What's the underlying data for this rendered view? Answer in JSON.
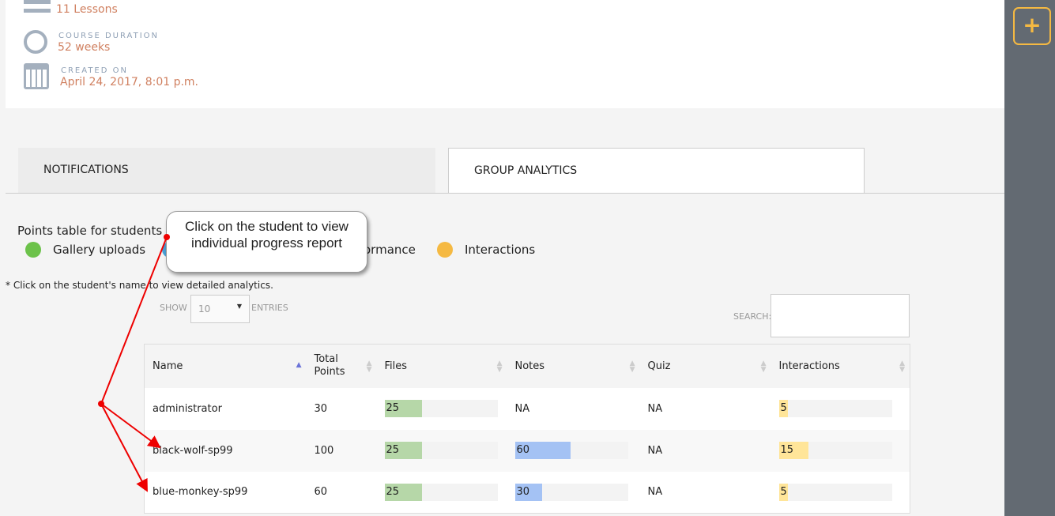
{
  "course_info": {
    "lessons_value": "11 Lessons",
    "duration_label": "COURSE DURATION",
    "duration_value": "52 weeks",
    "created_label": "CREATED ON",
    "created_value": "April 24, 2017, 8:01 p.m."
  },
  "sidebar": {
    "add_button": "+",
    "accent": "#f5b942"
  },
  "tabs": [
    {
      "label": "NOTIFICATIONS"
    },
    {
      "label": "GROUP ANALYTICS",
      "active": true
    }
  ],
  "analytics": {
    "title": "Points table for students",
    "legend": [
      {
        "label": "Gallery uploads",
        "color": "#6cc24a"
      },
      {
        "label": "ormance",
        "color": "#4a9fd5"
      },
      {
        "label": "Interactions",
        "color": "#f5b942"
      }
    ],
    "note": "* Click on the student's name to view detailed analytics.",
    "show_label": "SHOW",
    "entries_value": "10",
    "entries_label": "ENTRIES",
    "search_label": "SEARCH:",
    "columns": [
      "Name",
      "Total Points",
      "Files",
      "Notes",
      "Quiz",
      "Interactions"
    ],
    "rows": [
      {
        "name": "administrator",
        "total": "30",
        "files": {
          "value": "25",
          "pct": 33
        },
        "notes": {
          "value": "NA"
        },
        "quiz": "NA",
        "interactions": {
          "value": "5",
          "pct": 8
        }
      },
      {
        "name": "black-wolf-sp99",
        "total": "100",
        "files": {
          "value": "25",
          "pct": 33
        },
        "notes": {
          "value": "60",
          "pct": 49
        },
        "quiz": "NA",
        "interactions": {
          "value": "15",
          "pct": 26
        }
      },
      {
        "name": "blue-monkey-sp99",
        "total": "60",
        "files": {
          "value": "25",
          "pct": 33
        },
        "notes": {
          "value": "30",
          "pct": 24
        },
        "quiz": "NA",
        "interactions": {
          "value": "5",
          "pct": 8
        }
      }
    ],
    "colors": {
      "files": "#b6d7a8",
      "notes": "#a4c2f4",
      "interactions": "#ffe599"
    }
  },
  "callout": {
    "text": "Click on the student to view individual progress report"
  }
}
